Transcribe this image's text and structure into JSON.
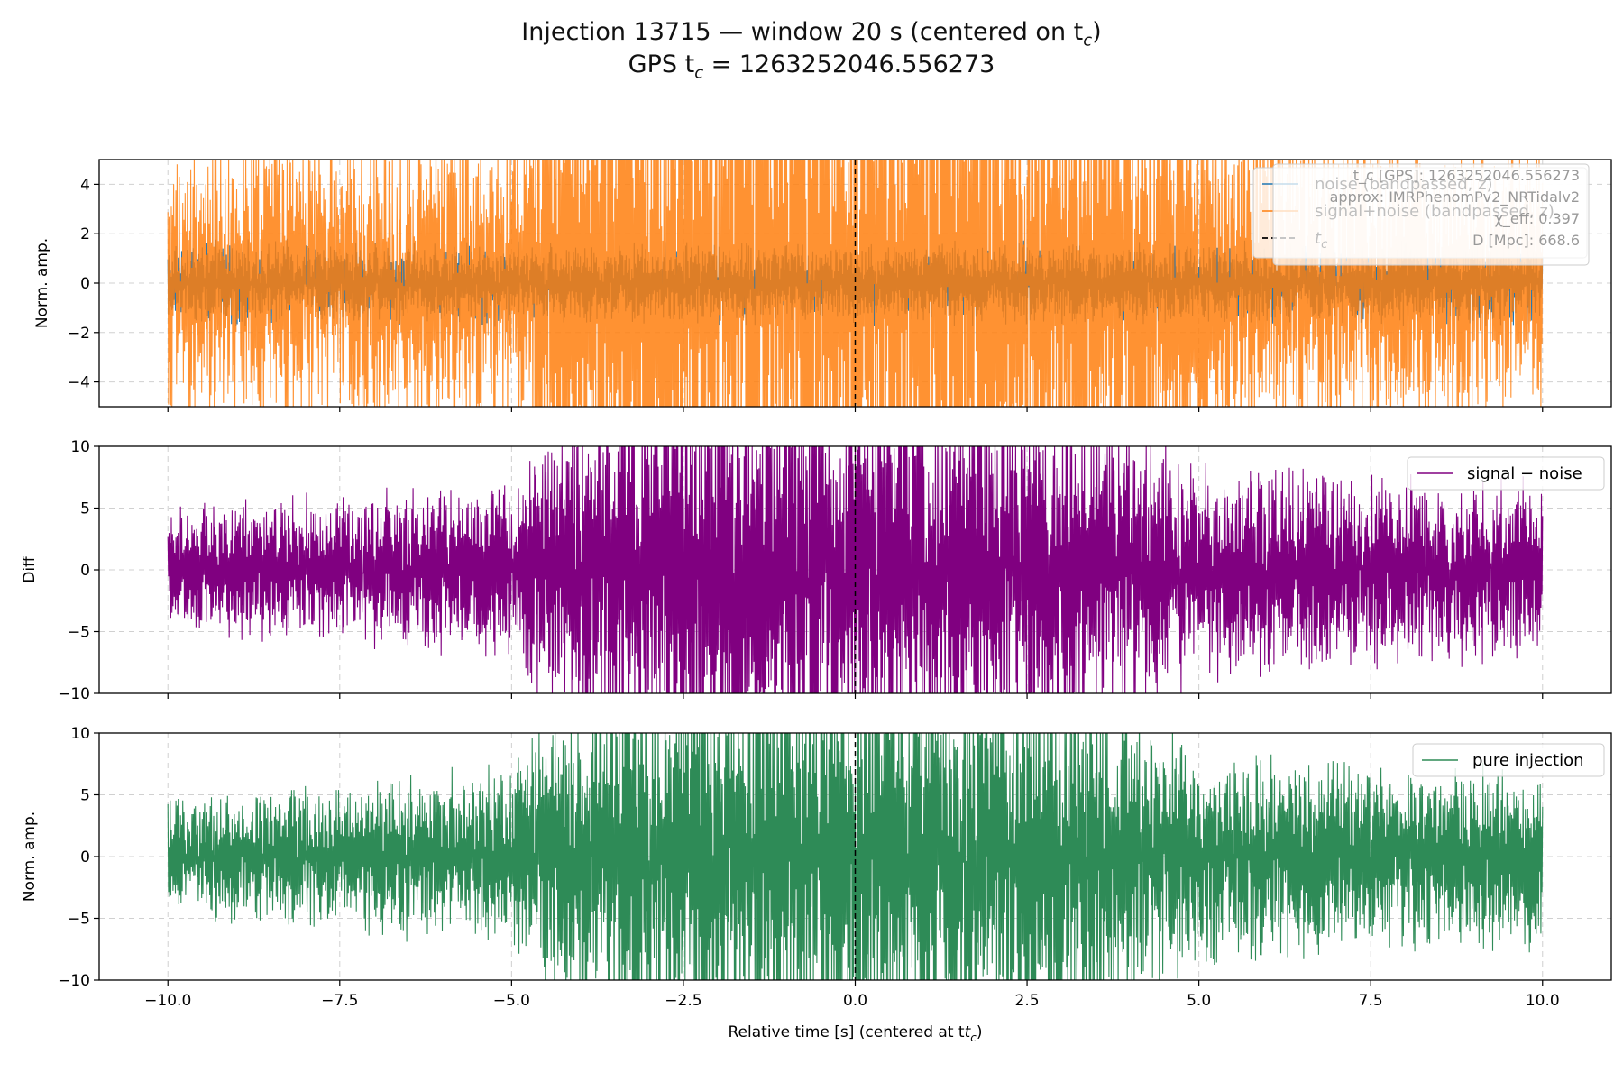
{
  "title_line1": "Injection 13715 — window 20 s (centered on t",
  "title_line1_sub": "c",
  "title_line1_end": ")",
  "title_line2": "GPS t",
  "title_line2_sub": "c",
  "title_line2_end": " = 1263252046.556273",
  "chart_data": [
    {
      "type": "line",
      "panel": "top",
      "ylabel": "Norm. amp.",
      "xlim": [
        -11,
        11
      ],
      "ylim": [
        -5,
        5
      ],
      "yticks": [
        -4,
        -2,
        0,
        2,
        4
      ],
      "ytick_labels": [
        "−4",
        "−2",
        "0",
        "2",
        "4"
      ],
      "grid": true,
      "legend_position": "top-right",
      "series": [
        {
          "name": "noise (bandpassed, z)",
          "color": "#1f77b4",
          "x_range": [
            -10,
            10
          ],
          "typical_amplitude": 1.5
        },
        {
          "name": "signal+noise (bandpassed, z)",
          "color": "#ff7f0e",
          "x_range": [
            -10,
            10
          ],
          "envelope_x": [
            -10,
            -7.5,
            -5,
            -4.5,
            -3.4,
            -2.5,
            0,
            2.5,
            4.5,
            5,
            7.5,
            10
          ],
          "envelope_amplitude": [
            5,
            6,
            6,
            9,
            12,
            12,
            12,
            12,
            9,
            7,
            6,
            5
          ]
        },
        {
          "name": "t_c",
          "color": "#000000",
          "style": "dashed",
          "x": 0
        }
      ],
      "info_box": [
        "t_c [GPS]: 1263252046.556273",
        "approx: IMRPhenomPv2_NRTidalv2",
        "χ_eff: 0.397",
        "D [Mpc]: 668.6"
      ]
    },
    {
      "type": "line",
      "panel": "middle",
      "ylabel": "Diff",
      "xlim": [
        -11,
        11
      ],
      "ylim": [
        -10,
        10
      ],
      "yticks": [
        -10,
        -5,
        0,
        5,
        10
      ],
      "ytick_labels": [
        "−10",
        "−5",
        "0",
        "5",
        "10"
      ],
      "grid": true,
      "legend_position": "top-right",
      "series": [
        {
          "name": "signal − noise",
          "color": "#800080",
          "x_range": [
            -10,
            10
          ],
          "envelope_x": [
            -10,
            -7.5,
            -5,
            -4.5,
            -3.4,
            -2.5,
            0,
            2.5,
            4.5,
            5,
            7.5,
            10
          ],
          "envelope_amplitude": [
            4.5,
            5.5,
            6.5,
            10,
            15,
            16,
            16,
            15,
            10,
            8,
            7,
            6.5
          ]
        }
      ]
    },
    {
      "type": "line",
      "panel": "bottom",
      "ylabel": "Norm. amp.",
      "xlabel": "Relative time [s] (centered at t",
      "xlabel_sub": "c",
      "xlabel_end": ")",
      "xlim": [
        -11,
        11
      ],
      "ylim": [
        -10,
        10
      ],
      "xticks": [
        -10,
        -7.5,
        -5,
        -2.5,
        0,
        2.5,
        5,
        7.5,
        10
      ],
      "xtick_labels": [
        "−10.0",
        "−7.5",
        "−5.0",
        "−2.5",
        "0.0",
        "2.5",
        "5.0",
        "7.5",
        "10.0"
      ],
      "yticks": [
        -10,
        -5,
        0,
        5,
        10
      ],
      "ytick_labels": [
        "−10",
        "−5",
        "0",
        "5",
        "10"
      ],
      "grid": true,
      "legend_position": "top-right",
      "series": [
        {
          "name": "pure injection",
          "color": "#2e8b57",
          "x_range": [
            -10,
            10
          ],
          "envelope_x": [
            -10,
            -7.5,
            -5,
            -4.5,
            -3.4,
            -2.5,
            0,
            2.5,
            4.5,
            5,
            7.5,
            10
          ],
          "envelope_amplitude": [
            4.5,
            5.5,
            6.5,
            10,
            15,
            16,
            16,
            15,
            10,
            8,
            7,
            6.5
          ]
        }
      ]
    }
  ]
}
